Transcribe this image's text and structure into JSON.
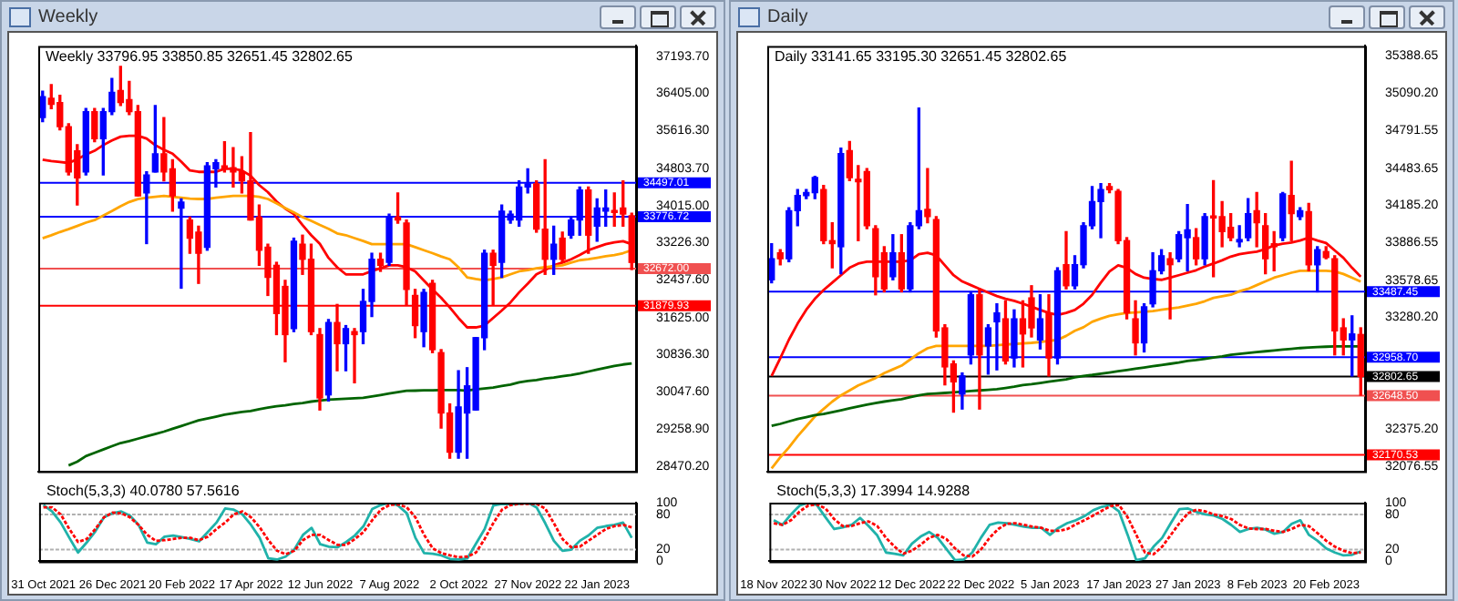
{
  "chart_data": [
    {
      "type": "candlestick",
      "title": "Weekly",
      "subtitle": "Weekly 33796.95 33850.85 32651.45 32802.65",
      "tick_labels": "y",
      "categories": [
        null,
        null,
        null,
        null,
        null,
        null,
        null,
        null,
        null,
        null,
        null,
        null,
        null,
        null,
        null,
        null,
        null,
        null,
        null,
        null,
        null,
        null,
        null,
        null,
        null,
        null,
        null,
        null,
        null,
        null,
        null,
        null,
        null,
        null,
        null,
        null,
        null,
        null,
        null,
        null,
        null,
        null,
        null,
        null,
        null,
        null,
        null,
        null,
        null,
        null,
        null,
        null,
        null,
        null,
        null,
        null,
        null,
        null,
        null,
        null,
        null,
        null,
        null,
        null,
        null,
        null,
        null,
        null,
        null
      ],
      "ohlc": [
        [
          35885,
          36450,
          35800,
          36334
        ],
        [
          36296,
          36590,
          36078,
          36168
        ],
        [
          36206,
          36360,
          35628,
          35693
        ],
        [
          35693,
          35757,
          34667,
          34731
        ],
        [
          35180,
          35308,
          34025,
          34603
        ],
        [
          34731,
          36078,
          34667,
          36014
        ],
        [
          36014,
          36078,
          35372,
          35436
        ],
        [
          35436,
          36078,
          34667,
          36014
        ],
        [
          36014,
          36719,
          35950,
          36424
        ],
        [
          36463,
          36976,
          36142,
          36206
        ],
        [
          36270,
          36655,
          35950,
          36014
        ],
        [
          36014,
          36142,
          34218,
          34218
        ],
        [
          34282,
          34731,
          33204,
          34667
        ],
        [
          34731,
          36142,
          34731,
          35116
        ],
        [
          35116,
          35886,
          34539,
          34731
        ],
        [
          34795,
          34988,
          33896,
          34218
        ],
        [
          33960,
          34154,
          32254,
          34090
        ],
        [
          33704,
          33768,
          32998,
          33319
        ],
        [
          33447,
          33576,
          32357,
          32998
        ],
        [
          33127,
          34924,
          33063,
          34859
        ],
        [
          34795,
          34988,
          34410,
          34924
        ],
        [
          34859,
          35372,
          34731,
          34795
        ],
        [
          34820,
          35244,
          34410,
          34731
        ],
        [
          34731,
          35052,
          34282,
          34539
        ],
        [
          34539,
          35565,
          33704,
          33704
        ],
        [
          33768,
          34025,
          32741,
          33063
        ],
        [
          33127,
          33191,
          32100,
          32485
        ],
        [
          32741,
          32805,
          31266,
          31715
        ],
        [
          32292,
          32421,
          30689,
          31266
        ],
        [
          31394,
          33319,
          31330,
          33255
        ],
        [
          33191,
          33383,
          32549,
          32870
        ],
        [
          32870,
          33191,
          31266,
          31330
        ],
        [
          31266,
          31394,
          29661,
          29918
        ],
        [
          29982,
          31587,
          29854,
          31523
        ],
        [
          31523,
          31908,
          30497,
          31073
        ],
        [
          31073,
          31458,
          30497,
          31394
        ],
        [
          31330,
          31394,
          30240,
          31266
        ],
        [
          31330,
          32228,
          31073,
          31972
        ],
        [
          31972,
          32998,
          31651,
          32870
        ],
        [
          32870,
          32998,
          32613,
          32741
        ],
        [
          32805,
          33832,
          32741,
          33768
        ],
        [
          33768,
          34282,
          33640,
          33704
        ],
        [
          33640,
          33704,
          31908,
          32228
        ],
        [
          32100,
          32228,
          31202,
          31458
        ],
        [
          31330,
          32228,
          31009,
          32164
        ],
        [
          32357,
          32421,
          30882,
          30946
        ],
        [
          30882,
          30946,
          29276,
          29597
        ],
        [
          29597,
          29790,
          28635,
          28763
        ],
        [
          28763,
          30497,
          28635,
          29726
        ],
        [
          29597,
          30561,
          28635,
          30175
        ],
        [
          29661,
          31202,
          29661,
          31202
        ],
        [
          31202,
          33063,
          30946,
          32998
        ],
        [
          32998,
          33063,
          31908,
          32741
        ],
        [
          32805,
          34025,
          32485,
          33896
        ],
        [
          33704,
          33896,
          33640,
          33832
        ],
        [
          33704,
          34539,
          33576,
          34410
        ],
        [
          34410,
          34795,
          34282,
          34475
        ],
        [
          34475,
          34539,
          33447,
          33511
        ],
        [
          33511,
          34988,
          32549,
          32870
        ],
        [
          32870,
          33576,
          32549,
          33191
        ],
        [
          33319,
          33447,
          32805,
          32870
        ],
        [
          33383,
          33768,
          33319,
          33704
        ],
        [
          33704,
          34410,
          33383,
          34346
        ],
        [
          34346,
          34410,
          32998,
          33383
        ],
        [
          33576,
          34154,
          33255,
          33960
        ],
        [
          33896,
          34346,
          33576,
          33960
        ],
        [
          33896,
          34282,
          33576,
          33868
        ],
        [
          33960,
          34539,
          33576,
          33832
        ],
        [
          33796.95,
          33850.85,
          32651.45,
          32802.65
        ]
      ],
      "colors": [
        "#0000ff",
        "#ff0000",
        "#ff0000",
        "#ff0000",
        "#ff0000",
        "#0000ff",
        "#ff0000",
        "#0000ff",
        "#0000ff",
        "#ff0000",
        "#ff0000",
        "#ff0000",
        "#0000ff",
        "#0000ff",
        "#ff0000",
        "#ff0000",
        "#0000ff",
        "#ff0000",
        "#ff0000",
        "#0000ff",
        "#0000ff",
        "#ff0000",
        "#ff0000",
        "#ff0000",
        "#ff0000",
        "#ff0000",
        "#ff0000",
        "#ff0000",
        "#ff0000",
        "#0000ff",
        "#ff0000",
        "#ff0000",
        "#ff0000",
        "#0000ff",
        "#ff0000",
        "#0000ff",
        "#ff0000",
        "#0000ff",
        "#0000ff",
        "#ff0000",
        "#0000ff",
        "#ff0000",
        "#ff0000",
        "#ff0000",
        "#0000ff",
        "#ff0000",
        "#ff0000",
        "#ff0000",
        "#0000ff",
        "#0000ff",
        "#0000ff",
        "#0000ff",
        "#ff0000",
        "#0000ff",
        "#0000ff",
        "#0000ff",
        "#0000ff",
        "#ff0000",
        "#ff0000",
        "#0000ff",
        "#ff0000",
        "#0000ff",
        "#0000ff",
        "#ff0000",
        "#0000ff",
        "#0000ff",
        "#ff0000",
        "#ff0000",
        "#ff0000"
      ],
      "series": [
        {
          "type": "line",
          "color": "#ff0000",
          "values": [
            34988,
            34960,
            34940,
            34920,
            35000,
            35100,
            35180,
            35300,
            35400,
            35480,
            35500,
            35500,
            35440,
            35300,
            35200,
            35120,
            34950,
            34760,
            34731,
            34731,
            34731,
            34795,
            34795,
            34760,
            34650,
            34450,
            34300,
            34100,
            33950,
            33832,
            33600,
            33383,
            33200,
            32900,
            32700,
            32549,
            32549,
            32549,
            32620,
            32677,
            32741,
            32741,
            32700,
            32613,
            32420,
            32228,
            32050,
            31844,
            31620,
            31420,
            31420,
            31458,
            31620,
            31780,
            31950,
            32164,
            32350,
            32549,
            32640,
            32741,
            32800,
            32870,
            32960,
            33063,
            33130,
            33191,
            33230,
            33255,
            33191
          ]
        },
        {
          "type": "line",
          "color": "#ffa500",
          "values": [
            33319,
            33380,
            33450,
            33511,
            33580,
            33650,
            33704,
            33800,
            33896,
            34000,
            34090,
            34150,
            34180,
            34200,
            34218,
            34200,
            34180,
            34160,
            34154,
            34154,
            34180,
            34200,
            34218,
            34218,
            34218,
            34200,
            34154,
            34060,
            33960,
            33870,
            33768,
            33690,
            33600,
            33520,
            33420,
            33383,
            33320,
            33260,
            33191,
            33191,
            33191,
            33191,
            33191,
            33130,
            33063,
            33000,
            32930,
            32870,
            32700,
            32485,
            32450,
            32421,
            32450,
            32485,
            32550,
            32613,
            32640,
            32677,
            32700,
            32720,
            32741,
            32800,
            32850,
            32870,
            32900,
            32934,
            32960,
            33000,
            33063
          ]
        },
        {
          "type": "line",
          "color": "#006400",
          "values": [
            null,
            null,
            null,
            28480,
            28560,
            28680,
            28750,
            28820,
            28890,
            28957,
            29000,
            29050,
            29100,
            29150,
            29200,
            29260,
            29320,
            29380,
            29440,
            29480,
            29520,
            29560,
            29590,
            29620,
            29640,
            29680,
            29710,
            29740,
            29760,
            29790,
            29810,
            29840,
            29860,
            29880,
            29890,
            29900,
            29910,
            29920,
            29950,
            29980,
            30010,
            30040,
            30070,
            30073,
            30080,
            30080,
            30086,
            30086,
            30086,
            30073,
            30100,
            30120,
            30140,
            30170,
            30200,
            30250,
            30278,
            30300,
            30330,
            30350,
            30380,
            30406,
            30440,
            30480,
            30520,
            30560,
            30600,
            30630,
            30650
          ]
        }
      ],
      "ylim": [
        28355,
        37413
      ],
      "yticks": [
        {
          "value": 28470.2,
          "label": "28470.20"
        },
        {
          "value": 29258.9,
          "label": "29258.90"
        },
        {
          "value": 30047.6,
          "label": "30047.60"
        },
        {
          "value": 30836.3,
          "label": "30836.30"
        },
        {
          "value": 31625,
          "label": "31625.00"
        },
        {
          "value": 32437.6,
          "label": "32437.60"
        },
        {
          "value": 33226.3,
          "label": "33226.30"
        },
        {
          "value": 34015,
          "label": "34015.00"
        },
        {
          "value": 34803.7,
          "label": "34803.70"
        },
        {
          "value": 35616.3,
          "label": "35616.30"
        },
        {
          "value": 36405,
          "label": "36405.00"
        },
        {
          "value": 37193.7,
          "label": "37193.70"
        }
      ],
      "ref_lines": [
        {
          "axis": "y",
          "value": 34497.01,
          "label": "34497.01",
          "color": "#0000ff"
        },
        {
          "axis": "y",
          "value": 33776.72,
          "label": "33776.72",
          "color": "#0000ff"
        },
        {
          "axis": "y",
          "value": 32672,
          "label": "32672.00",
          "color": "#f05050"
        },
        {
          "axis": "y",
          "value": 31879.93,
          "label": "31879.93",
          "color": "#ff0000"
        }
      ]
    },
    {
      "type": "line",
      "title": "Stoch(5,3,3) 40.0780 57.5616",
      "categories": [
        "31 Oct 2021",
        null,
        null,
        null,
        null,
        null,
        null,
        null,
        "26 Dec 2021",
        null,
        null,
        null,
        null,
        null,
        null,
        null,
        "20 Feb 2022",
        null,
        null,
        null,
        null,
        null,
        null,
        null,
        "17 Apr 2022",
        null,
        null,
        null,
        null,
        null,
        null,
        null,
        "12 Jun 2022",
        null,
        null,
        null,
        null,
        null,
        null,
        null,
        "7 Aug 2022",
        null,
        null,
        null,
        null,
        null,
        null,
        null,
        "2 Oct 2022",
        null,
        null,
        null,
        null,
        null,
        null,
        null,
        "27 Nov 2022",
        null,
        null,
        null,
        null,
        null,
        null,
        null,
        "22 Jan 2023",
        null,
        null,
        null,
        null
      ],
      "series": [
        {
          "color": "#20b2aa",
          "line_style": "solid",
          "values": [
            96,
            85,
            66,
            40,
            15,
            32,
            51,
            75,
            82,
            85,
            78,
            62,
            32,
            29,
            42,
            44,
            41,
            38,
            34,
            50,
            66,
            90,
            88,
            80,
            62,
            40,
            5,
            3,
            8,
            20,
            45,
            57,
            29,
            25,
            24,
            33,
            44,
            60,
            89,
            96,
            100,
            95,
            82,
            40,
            14,
            13,
            10,
            4,
            3,
            5,
            30,
            55,
            95,
            98,
            97,
            98,
            100,
            92,
            65,
            35,
            18,
            20,
            35,
            44,
            57,
            60,
            62,
            66,
            40
          ]
        },
        {
          "color": "#ff0000",
          "line_style": "dotted",
          "values": [
            92,
            92,
            80,
            55,
            33,
            38,
            55,
            75,
            83,
            82,
            75,
            62,
            45,
            35,
            36,
            38,
            40,
            40,
            36,
            42,
            55,
            66,
            80,
            85,
            75,
            58,
            36,
            18,
            12,
            18,
            36,
            45,
            45,
            36,
            28,
            28,
            38,
            50,
            70,
            88,
            96,
            97,
            92,
            75,
            45,
            22,
            14,
            10,
            7,
            8,
            15,
            38,
            65,
            88,
            96,
            98,
            98,
            98,
            90,
            65,
            38,
            24,
            25,
            35,
            45,
            55,
            60,
            62,
            58
          ]
        }
      ],
      "ylim": [
        0,
        100
      ],
      "yticks": [
        0,
        20,
        80,
        100
      ],
      "ref_lines": [
        {
          "axis": "y",
          "value": 20,
          "color": "#b0b0b0",
          "line_style": "dotted"
        },
        {
          "axis": "y",
          "value": 80,
          "color": "#b0b0b0",
          "line_style": "dotted"
        }
      ]
    },
    {
      "type": "candlestick",
      "title": "Daily",
      "subtitle": "Daily 33141.65 33195.30 32651.45 32802.65",
      "tick_labels": "y",
      "categories": [
        null,
        null,
        null,
        null,
        null,
        null,
        null,
        null,
        null,
        null,
        null,
        null,
        null,
        null,
        null,
        null,
        null,
        null,
        null,
        null,
        null,
        null,
        null,
        null,
        null,
        null,
        null,
        null,
        null,
        null,
        null,
        null,
        null,
        null,
        null,
        null,
        null,
        null,
        null,
        null,
        null,
        null,
        null,
        null,
        null,
        null,
        null,
        null,
        null,
        null,
        null,
        null,
        null,
        null,
        null,
        null,
        null,
        null,
        null,
        null,
        null,
        null,
        null,
        null,
        null,
        null,
        null,
        null,
        null
      ],
      "ohlc": [
        [
          33583,
          33874,
          33559,
          33753
        ],
        [
          33801,
          33826,
          33704,
          33753
        ],
        [
          33753,
          34165,
          33729,
          34141
        ],
        [
          34141,
          34311,
          34020,
          34263
        ],
        [
          34263,
          34311,
          34238,
          34287
        ],
        [
          34287,
          34418,
          34238,
          34408
        ],
        [
          34311,
          34345,
          33875,
          33899
        ],
        [
          33899,
          34044,
          33680,
          33875
        ],
        [
          33850,
          34645,
          33632,
          34602
        ],
        [
          34626,
          34699,
          34384,
          34408
        ],
        [
          34394,
          34505,
          33899,
          34374
        ],
        [
          34457,
          34481,
          33996,
          34020
        ],
        [
          33996,
          34020,
          33462,
          33608
        ],
        [
          33801,
          33850,
          33486,
          33510
        ],
        [
          33608,
          33947,
          33583,
          33801
        ],
        [
          33801,
          33947,
          33486,
          33510
        ],
        [
          33510,
          34044,
          33486,
          34020
        ],
        [
          34020,
          34969,
          33996,
          34141
        ],
        [
          34151,
          34481,
          34044,
          34093
        ],
        [
          34069,
          34093,
          33122,
          33171
        ],
        [
          33195,
          33220,
          32735,
          32880
        ],
        [
          32904,
          32928,
          32515,
          32759
        ],
        [
          32661,
          32831,
          32540,
          32807
        ],
        [
          32977,
          33486,
          32904,
          33462
        ],
        [
          33462,
          33510,
          32540,
          32977
        ],
        [
          33049,
          33220,
          32822,
          33195
        ],
        [
          33244,
          33389,
          32856,
          33316
        ],
        [
          33268,
          33413,
          32904,
          32928
        ],
        [
          32952,
          33340,
          32880,
          33268
        ],
        [
          33268,
          33413,
          32880,
          33146
        ],
        [
          33437,
          33535,
          33122,
          33195
        ],
        [
          33098,
          33462,
          33025,
          33268
        ],
        [
          33316,
          33462,
          32807,
          32952
        ],
        [
          32952,
          33680,
          32904,
          33656
        ],
        [
          33705,
          33972,
          33510,
          33535
        ],
        [
          33535,
          33777,
          33510,
          33705
        ],
        [
          33705,
          34044,
          33680,
          34020
        ],
        [
          34020,
          34335,
          33996,
          34214
        ],
        [
          34214,
          34360,
          33923,
          34311
        ],
        [
          34335,
          34360,
          34287,
          34311
        ],
        [
          34297,
          34311,
          33875,
          33899
        ],
        [
          33899,
          33923,
          33268,
          33316
        ],
        [
          33268,
          33413,
          32977,
          33074
        ],
        [
          33074,
          33389,
          33001,
          33365
        ],
        [
          33389,
          33801,
          33365,
          33656
        ],
        [
          33656,
          33826,
          33632,
          33777
        ],
        [
          33753,
          33801,
          33268,
          33705
        ],
        [
          33753,
          33972,
          33729,
          33947
        ],
        [
          33923,
          34190,
          33656,
          33986
        ],
        [
          33923,
          33996,
          33704,
          33753
        ],
        [
          33753,
          34117,
          33704,
          34093
        ],
        [
          34093,
          34384,
          33608,
          34083
        ],
        [
          34093,
          34214,
          33850,
          33972
        ],
        [
          34006,
          34117,
          33899,
          33923
        ],
        [
          33889,
          34020,
          33850,
          33908
        ],
        [
          33923,
          34238,
          33899,
          34117
        ],
        [
          34141,
          34287,
          33850,
          34044
        ],
        [
          34020,
          34117,
          33632,
          33753
        ],
        [
          33874,
          33972,
          33656,
          33850
        ],
        [
          33923,
          34287,
          33899,
          34277
        ],
        [
          34263,
          34539,
          33899,
          34117
        ],
        [
          34093,
          34165,
          34069,
          34141
        ],
        [
          34134,
          34199,
          33656,
          33704
        ],
        [
          33704,
          33850,
          33486,
          33826
        ],
        [
          33811,
          33850,
          33753,
          33763
        ],
        [
          33753,
          33777,
          32977,
          33171
        ],
        [
          33195,
          33268,
          32977,
          33098
        ],
        [
          33098,
          33292,
          32807,
          33146
        ],
        [
          33141.65,
          33195.3,
          32651.45,
          32802.65
        ]
      ],
      "colors": [
        "#0000ff",
        "#ff0000",
        "#0000ff",
        "#0000ff",
        "#0000ff",
        "#0000ff",
        "#ff0000",
        "#ff0000",
        "#0000ff",
        "#ff0000",
        "#ff0000",
        "#ff0000",
        "#ff0000",
        "#ff0000",
        "#0000ff",
        "#ff0000",
        "#0000ff",
        "#0000ff",
        "#ff0000",
        "#ff0000",
        "#ff0000",
        "#ff0000",
        "#0000ff",
        "#0000ff",
        "#ff0000",
        "#0000ff",
        "#0000ff",
        "#ff0000",
        "#0000ff",
        "#ff0000",
        "#ff0000",
        "#0000ff",
        "#ff0000",
        "#0000ff",
        "#ff0000",
        "#0000ff",
        "#0000ff",
        "#0000ff",
        "#0000ff",
        "#ff0000",
        "#ff0000",
        "#ff0000",
        "#ff0000",
        "#0000ff",
        "#0000ff",
        "#0000ff",
        "#ff0000",
        "#0000ff",
        "#0000ff",
        "#ff0000",
        "#0000ff",
        "#ff0000",
        "#ff0000",
        "#ff0000",
        "#0000ff",
        "#0000ff",
        "#ff0000",
        "#ff0000",
        "#ff0000",
        "#0000ff",
        "#ff0000",
        "#0000ff",
        "#ff0000",
        "#0000ff",
        "#ff0000",
        "#ff0000",
        "#ff0000",
        "#0000ff",
        "#ff0000"
      ],
      "series": [
        {
          "type": "line",
          "color": "#ff0000",
          "values": [
            32807,
            32950,
            33100,
            33230,
            33341,
            33430,
            33500,
            33560,
            33620,
            33680,
            33714,
            33729,
            33729,
            33729,
            33729,
            33729,
            33740,
            33790,
            33801,
            33780,
            33700,
            33620,
            33570,
            33540,
            33510,
            33480,
            33452,
            33430,
            33413,
            33390,
            33365,
            33340,
            33316,
            33300,
            33316,
            33340,
            33390,
            33462,
            33560,
            33650,
            33700,
            33680,
            33630,
            33600,
            33590,
            33583,
            33600,
            33620,
            33640,
            33660,
            33690,
            33714,
            33740,
            33770,
            33790,
            33801,
            33810,
            33830,
            33860,
            33875,
            33884,
            33900,
            33923,
            33900,
            33880,
            33820,
            33760,
            33680,
            33608
          ]
        },
        {
          "type": "line",
          "color": "#ffa500",
          "values": [
            32060,
            32150,
            32230,
            32320,
            32400,
            32480,
            32540,
            32600,
            32650,
            32690,
            32730,
            32760,
            32790,
            32830,
            32860,
            32890,
            32940,
            32990,
            33030,
            33049,
            33049,
            33049,
            33049,
            33049,
            33049,
            33049,
            33055,
            33060,
            33065,
            33070,
            33074,
            33080,
            33090,
            33098,
            33130,
            33171,
            33200,
            33244,
            33270,
            33292,
            33305,
            33316,
            33320,
            33325,
            33330,
            33341,
            33350,
            33360,
            33375,
            33389,
            33410,
            33437,
            33450,
            33462,
            33490,
            33510,
            33540,
            33570,
            33600,
            33620,
            33640,
            33656,
            33656,
            33656,
            33656,
            33650,
            33630,
            33600,
            33569
          ]
        },
        {
          "type": "line",
          "color": "#006400",
          "values": [
            32404,
            32420,
            32440,
            32460,
            32475,
            32491,
            32500,
            32515,
            32530,
            32545,
            32560,
            32575,
            32588,
            32600,
            32610,
            32620,
            32635,
            32650,
            32661,
            32665,
            32670,
            32675,
            32680,
            32685,
            32690,
            32695,
            32700,
            32710,
            32720,
            32734,
            32740,
            32750,
            32760,
            32770,
            32780,
            32795,
            32807,
            32815,
            32825,
            32835,
            32845,
            32855,
            32865,
            32875,
            32885,
            32895,
            32905,
            32915,
            32928,
            32935,
            32945,
            32955,
            32965,
            32977,
            32985,
            32992,
            32999,
            33006,
            33013,
            33020,
            33026,
            33032,
            33036,
            33040,
            33043,
            33045,
            33045,
            33045,
            33045
          ]
        }
      ],
      "ylim": [
        32037,
        35471
      ],
      "yticks": [
        {
          "value": 32076.55,
          "label": "32076.55"
        },
        {
          "value": 32375.2,
          "label": "32375.20"
        },
        {
          "value": 33280.2,
          "label": "33280.20"
        },
        {
          "value": 33578.65,
          "label": "33578.65"
        },
        {
          "value": 33886.55,
          "label": "33886.55"
        },
        {
          "value": 34185.2,
          "label": "34185.20"
        },
        {
          "value": 34483.65,
          "label": "34483.65"
        },
        {
          "value": 34791.55,
          "label": "34791.55"
        },
        {
          "value": 35090.2,
          "label": "35090.20"
        },
        {
          "value": 35388.65,
          "label": "35388.65"
        }
      ],
      "ref_lines": [
        {
          "axis": "y",
          "value": 33487.45,
          "label": "33487.45",
          "color": "#0000ff"
        },
        {
          "axis": "y",
          "value": 32958.7,
          "label": "32958.70",
          "color": "#0000ff"
        },
        {
          "axis": "y",
          "value": 32802.65,
          "label": "32802.65",
          "color": "#000000"
        },
        {
          "axis": "y",
          "value": 32648.5,
          "label": "32648.50",
          "color": "#f05050"
        },
        {
          "axis": "y",
          "value": 32170.53,
          "label": "32170.53",
          "color": "#ff0000"
        }
      ]
    },
    {
      "type": "line",
      "title": "Stoch(5,3,3) 17.3994 14.9288",
      "categories": [
        "18 Nov 2022",
        null,
        null,
        null,
        null,
        null,
        null,
        null,
        "30 Nov 2022",
        null,
        null,
        null,
        null,
        null,
        null,
        null,
        "12 Dec 2022",
        null,
        null,
        null,
        null,
        null,
        null,
        null,
        "22 Dec 2022",
        null,
        null,
        null,
        null,
        null,
        null,
        null,
        "5 Jan 2023",
        null,
        null,
        null,
        null,
        null,
        null,
        null,
        "17 Jan 2023",
        null,
        null,
        null,
        null,
        null,
        null,
        null,
        "27 Jan 2023",
        null,
        null,
        null,
        null,
        null,
        null,
        null,
        "8 Feb 2023",
        null,
        null,
        null,
        null,
        null,
        null,
        null,
        "20 Feb 2023",
        null,
        null,
        null,
        null
      ],
      "series": [
        {
          "color": "#20b2aa",
          "line_style": "solid",
          "values": [
            70,
            62,
            80,
            95,
            100,
            96,
            75,
            55,
            58,
            62,
            74,
            60,
            44,
            15,
            13,
            10,
            30,
            42,
            50,
            40,
            21,
            2,
            3,
            15,
            40,
            62,
            66,
            65,
            62,
            59,
            57,
            57,
            45,
            57,
            65,
            70,
            77,
            87,
            93,
            96,
            85,
            45,
            2,
            5,
            25,
            40,
            65,
            89,
            90,
            84,
            80,
            78,
            72,
            62,
            50,
            55,
            57,
            54,
            47,
            50,
            64,
            70,
            45,
            35,
            22,
            15,
            10,
            11,
            17
          ]
        },
        {
          "color": "#ff0000",
          "line_style": "dotted",
          "values": [
            65,
            62,
            70,
            85,
            95,
            97,
            90,
            72,
            60,
            60,
            65,
            68,
            60,
            40,
            25,
            13,
            18,
            28,
            40,
            45,
            38,
            22,
            10,
            8,
            20,
            40,
            55,
            64,
            65,
            62,
            59,
            57,
            52,
            52,
            55,
            63,
            70,
            78,
            86,
            94,
            96,
            75,
            45,
            15,
            12,
            25,
            45,
            65,
            82,
            88,
            85,
            80,
            77,
            72,
            62,
            56,
            55,
            55,
            52,
            50,
            55,
            62,
            60,
            48,
            35,
            25,
            18,
            14,
            15
          ]
        }
      ],
      "ylim": [
        0,
        100
      ],
      "yticks": [
        0,
        20,
        80,
        100
      ],
      "ref_lines": [
        {
          "axis": "y",
          "value": 20,
          "color": "#b0b0b0",
          "line_style": "dotted"
        },
        {
          "axis": "y",
          "value": 80,
          "color": "#b0b0b0",
          "line_style": "dotted"
        }
      ]
    }
  ]
}
